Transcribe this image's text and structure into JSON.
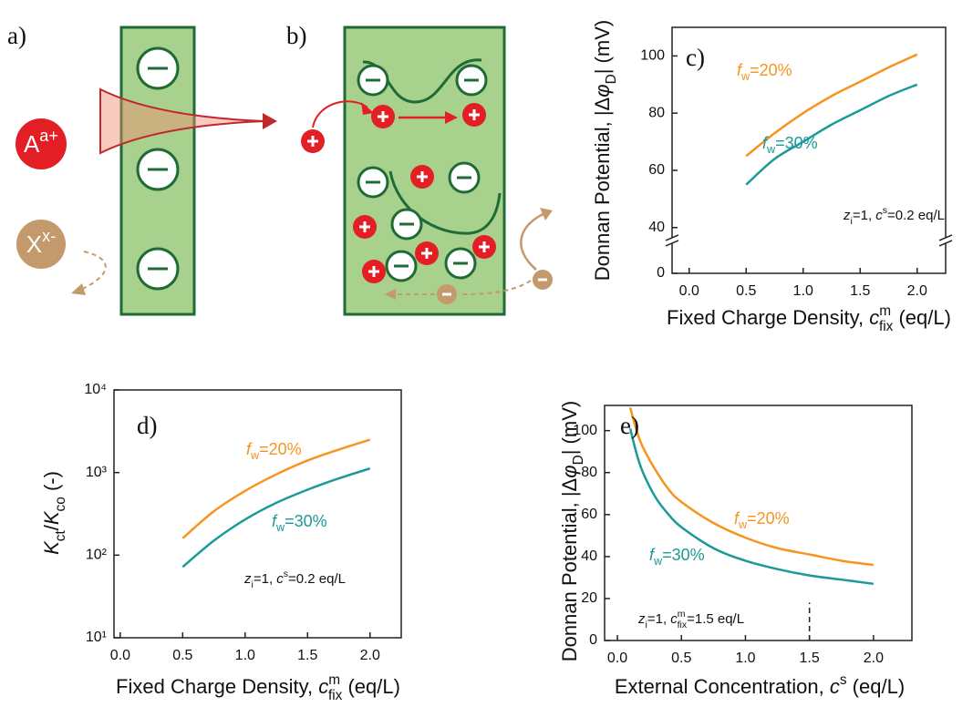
{
  "diagram_a": {
    "label": "a)",
    "cation": [
      "A",
      "a+"
    ],
    "anion": [
      "X",
      "x-"
    ]
  },
  "diagram_b": {
    "label": "b)"
  },
  "chart_data": [
    {
      "type": "line",
      "panel_label": "c)",
      "ylabel": [
        "Donnan Potential, |Δ",
        "φ",
        "D",
        "| (mV)"
      ],
      "xlabel": [
        "Fixed Charge Density, ",
        "c",
        "m",
        "fix",
        " (eq/L)"
      ],
      "annotation": [
        "z",
        "i",
        "=1, ",
        "c",
        "s",
        "=0.2 eq/L"
      ],
      "x": [
        0.5,
        0.75,
        1.0,
        1.25,
        1.5,
        1.75,
        2.0
      ],
      "series": [
        {
          "name": [
            "f",
            "w",
            "=20%"
          ],
          "color": "#f7941d",
          "values": [
            65,
            73,
            80,
            86,
            91,
            96,
            100.5
          ]
        },
        {
          "name": [
            "f",
            "w",
            "=30%"
          ],
          "color": "#1b9a98",
          "values": [
            55,
            64,
            70,
            76,
            81,
            86,
            90
          ]
        }
      ],
      "xlim": [
        -0.15,
        2.25
      ],
      "xticks": [
        {
          "value": 0,
          "label": "0.0"
        },
        0.5,
        {
          "value": 1,
          "label": "1.0"
        },
        1.5,
        {
          "value": 2,
          "label": "2.0"
        }
      ],
      "ylim": [
        0,
        110
      ],
      "ybreak": [
        10,
        37
      ],
      "yticks": [
        0,
        40,
        60,
        80,
        100
      ]
    },
    {
      "type": "line",
      "panel_label": "d)",
      "ylabel": [
        "K",
        "ct",
        "/",
        "K",
        "co",
        " (-)"
      ],
      "xlabel": [
        "Fixed Charge Density, ",
        "c",
        "m",
        "fix",
        " (eq/L)"
      ],
      "annotation": [
        "z",
        "i",
        "=1, ",
        "c",
        "s",
        "=0.2 eq/L"
      ],
      "x": [
        0.5,
        0.75,
        1.0,
        1.25,
        1.5,
        1.75,
        2.0
      ],
      "series": [
        {
          "name": [
            "f",
            "w",
            "=20%"
          ],
          "color": "#f7941d",
          "values": [
            160,
            340,
            600,
            950,
            1400,
            1900,
            2500
          ]
        },
        {
          "name": [
            "f",
            "w",
            "=30%"
          ],
          "color": "#1b9a98",
          "values": [
            72,
            150,
            270,
            430,
            620,
            850,
            1120
          ]
        }
      ],
      "xlim": [
        -0.05,
        2.25
      ],
      "xticks": [
        {
          "value": 0,
          "label": "0.0"
        },
        0.5,
        {
          "value": 1,
          "label": "1.0"
        },
        1.5,
        {
          "value": 2,
          "label": "2.0"
        }
      ],
      "ylim": [
        10,
        10000
      ],
      "log_y": true,
      "yticks": [
        {
          "value": 10,
          "label": "10¹"
        },
        {
          "value": 100,
          "label": "10²"
        },
        {
          "value": 1000,
          "label": "10³"
        },
        {
          "value": 10000,
          "label": "10⁴"
        }
      ]
    },
    {
      "type": "line",
      "panel_label": "e)",
      "ylabel": [
        "Donnan Potential, |Δ",
        "φ",
        "D",
        "| (mV)"
      ],
      "xlabel": [
        "External Concentration, ",
        "c",
        "s",
        " (eq/L)"
      ],
      "annotation": [
        "z",
        "i",
        "=1, ",
        "c",
        "m",
        "fix",
        "=1.5 eq/L"
      ],
      "x": [
        0.1,
        0.15,
        0.2,
        0.3,
        0.4,
        0.5,
        0.75,
        1.0,
        1.25,
        1.5,
        1.75,
        2.0
      ],
      "series": [
        {
          "name": [
            "f",
            "w",
            "=20%"
          ],
          "color": "#f7941d",
          "values": [
            111,
            100,
            92,
            81,
            72,
            66,
            56,
            49,
            44,
            41,
            38,
            36
          ]
        },
        {
          "name": [
            "f",
            "w",
            "=30%"
          ],
          "color": "#1b9a98",
          "values": [
            101,
            89,
            80,
            68,
            60,
            54,
            44,
            38,
            34,
            31,
            29,
            27
          ]
        }
      ],
      "guide": {
        "x": 1.5,
        "y": [
          0,
          18
        ]
      },
      "xlim": [
        -0.1,
        2.3
      ],
      "xticks": [
        {
          "value": 0,
          "label": "0.0"
        },
        0.5,
        {
          "value": 1,
          "label": "1.0"
        },
        1.5,
        {
          "value": 2,
          "label": "2.0"
        }
      ],
      "ylim": [
        0,
        112
      ],
      "yticks": [
        0,
        20,
        40,
        60,
        80,
        100
      ]
    }
  ]
}
